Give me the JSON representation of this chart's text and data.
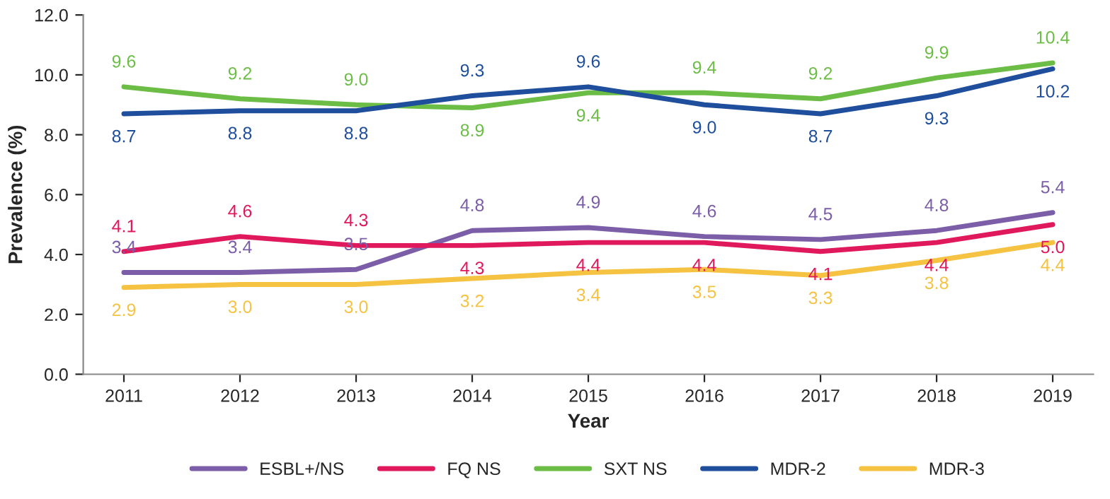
{
  "chart_data": {
    "type": "line",
    "xlabel": "Year",
    "ylabel": "Prevalence (%)",
    "categories": [
      "2011",
      "2012",
      "2013",
      "2014",
      "2015",
      "2016",
      "2017",
      "2018",
      "2019"
    ],
    "series": [
      {
        "name": "ESBL+/NS",
        "color": "#7b5ea7",
        "values": [
          3.4,
          3.4,
          3.5,
          4.8,
          4.9,
          4.6,
          4.5,
          4.8,
          5.4
        ],
        "value_labels": [
          "3.4",
          "3.4",
          "3.5",
          "4.8",
          "4.9",
          "4.6",
          "4.5",
          "4.8",
          "5.4"
        ]
      },
      {
        "name": "FQ NS",
        "color": "#e0195c",
        "values": [
          4.1,
          4.6,
          4.3,
          4.3,
          4.4,
          4.4,
          4.1,
          4.4,
          5.0
        ],
        "value_labels": [
          "4.1",
          "4.6",
          "4.3",
          "4.3",
          "4.4",
          "4.4",
          "4.1",
          "4.4",
          "5.0"
        ]
      },
      {
        "name": "SXT NS",
        "color": "#6cbd45",
        "values": [
          9.6,
          9.2,
          9.0,
          8.9,
          9.4,
          9.4,
          9.2,
          9.9,
          10.4
        ],
        "value_labels": [
          "9.6",
          "9.2",
          "9.0",
          "8.9",
          "9.4",
          "9.4",
          "9.2",
          "9.9",
          "10.4"
        ]
      },
      {
        "name": "MDR-2",
        "color": "#1f4e9c",
        "values": [
          8.7,
          8.8,
          8.8,
          9.3,
          9.6,
          9.0,
          8.7,
          9.3,
          10.2
        ],
        "value_labels": [
          "8.7",
          "8.8",
          "8.8",
          "9.3",
          "9.6",
          "9.0",
          "8.7",
          "9.3",
          "10.2"
        ]
      },
      {
        "name": "MDR-3",
        "color": "#f5c242",
        "values": [
          2.9,
          3.0,
          3.0,
          3.2,
          3.4,
          3.5,
          3.3,
          3.8,
          4.4
        ],
        "value_labels": [
          "2.9",
          "3.0",
          "3.0",
          "3.2",
          "3.4",
          "3.5",
          "3.3",
          "3.8",
          "4.4"
        ]
      }
    ],
    "ylim": [
      0,
      12
    ],
    "yticks": [
      {
        "value": 0,
        "label": "0.0"
      },
      {
        "value": 2,
        "label": "2.0"
      },
      {
        "value": 4,
        "label": "4.0"
      },
      {
        "value": 6,
        "label": "6.0"
      },
      {
        "value": 8,
        "label": "8.0"
      },
      {
        "value": 10,
        "label": "10.0"
      },
      {
        "value": 12,
        "label": "12.0"
      }
    ],
    "grid": false,
    "legend": "bottom",
    "marker": "none",
    "line_style": "solid"
  }
}
